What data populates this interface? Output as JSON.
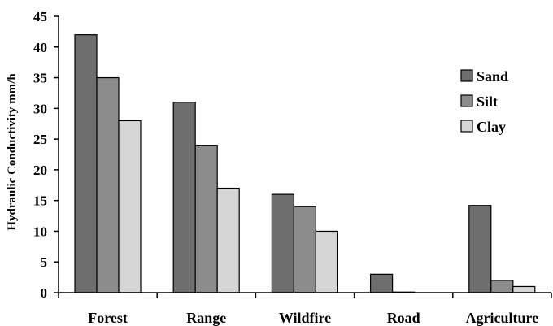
{
  "chart_data": {
    "type": "bar",
    "title": "",
    "xlabel": "",
    "ylabel": "Hydraulic Conductivity mm/h",
    "ylim": [
      0,
      45
    ],
    "yticks": [
      0,
      5,
      10,
      15,
      20,
      25,
      30,
      35,
      40,
      45
    ],
    "categories": [
      "Forest",
      "Range",
      "Wildfire",
      "Road",
      "Agriculture"
    ],
    "series": [
      {
        "name": "Sand",
        "values": [
          42,
          31,
          16,
          3,
          14.2
        ],
        "color": "#6e6e6e"
      },
      {
        "name": "Silt",
        "values": [
          35,
          24,
          14,
          0.1,
          2
        ],
        "color": "#8c8c8c"
      },
      {
        "name": "Clay",
        "values": [
          28,
          17,
          10,
          0,
          1
        ],
        "color": "#d6d6d6"
      }
    ],
    "grid": false,
    "legend_position": "right"
  }
}
